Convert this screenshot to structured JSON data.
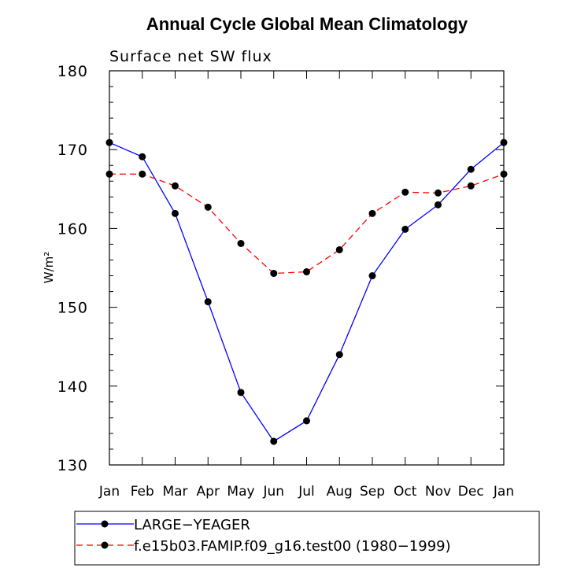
{
  "chart_data": {
    "type": "line",
    "title": "Annual Cycle Global Mean Climatology",
    "subtitle": "Surface net SW flux",
    "xlabel": "",
    "ylabel": "W/m²",
    "ylim": [
      130,
      180
    ],
    "yticks": [
      130,
      140,
      150,
      160,
      170,
      180
    ],
    "categories": [
      "Jan",
      "Feb",
      "Mar",
      "Apr",
      "May",
      "Jun",
      "Jul",
      "Aug",
      "Sep",
      "Oct",
      "Nov",
      "Dec",
      "Jan"
    ],
    "series": [
      {
        "name": "LARGE−YEAGER",
        "color": "#0000ff",
        "dash": "solid",
        "values": [
          170.9,
          169.1,
          161.9,
          150.7,
          139.2,
          133.0,
          135.6,
          144.0,
          154.0,
          159.9,
          163.0,
          167.5,
          170.9
        ]
      },
      {
        "name": "f.e15b03.FAMIP.f09_g16.test00 (1980−1999)",
        "color": "#ff0000",
        "dash": "dashed",
        "values": [
          166.9,
          166.9,
          165.4,
          162.7,
          158.1,
          154.3,
          154.5,
          157.3,
          161.9,
          164.6,
          164.5,
          165.4,
          166.9
        ]
      }
    ],
    "grid": false,
    "legend_position": "bottom"
  }
}
